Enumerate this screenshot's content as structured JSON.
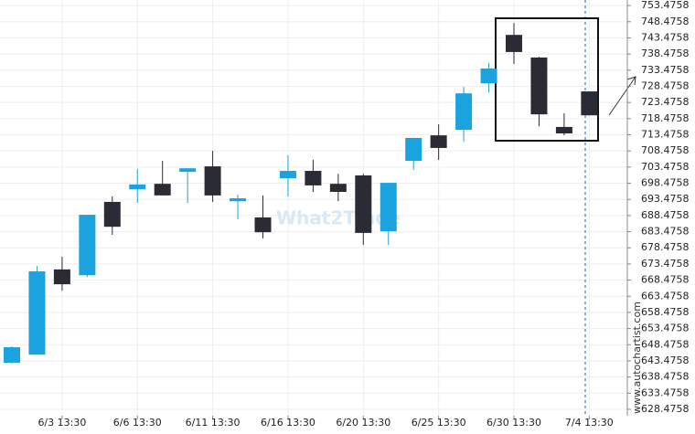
{
  "chart_data": {
    "type": "candlestick",
    "watermark": "What2Trade",
    "source": "www.autochartist.com",
    "categories": [
      null,
      null,
      "6/3 13:30",
      null,
      null,
      "6/6 13:30",
      null,
      null,
      "6/11 13:30",
      null,
      null,
      "6/16 13:30",
      null,
      null,
      "6/20 13:30",
      null,
      null,
      "6/25 13:30",
      null,
      null,
      "6/30 13:30",
      null,
      null,
      "7/4 13:30"
    ],
    "open": [
      642.9,
      645.4,
      671.8,
      670.0,
      692.7,
      696.6,
      698.3,
      702.0,
      703.7,
      692.9,
      687.9,
      700.0,
      702.3,
      698.3,
      700.9,
      683.6,
      705.4,
      713.3,
      715.0,
      729.4,
      744.4,
      737.4,
      715.9,
      726.9
    ],
    "high": [
      648.0,
      672.9,
      675.7,
      688.7,
      694.4,
      702.9,
      705.4,
      703.1,
      708.5,
      694.9,
      694.7,
      707.1,
      705.7,
      701.4,
      701.4,
      698.6,
      712.5,
      716.7,
      728.3,
      735.7,
      748.1,
      737.6,
      720.1,
      726.9
    ],
    "low": [
      642.6,
      645.4,
      665.2,
      669.4,
      682.5,
      692.4,
      694.7,
      692.4,
      692.7,
      687.3,
      681.4,
      694.4,
      695.8,
      692.9,
      679.4,
      679.4,
      702.6,
      705.7,
      711.3,
      726.6,
      735.4,
      716.1,
      713.3,
      719.5
    ],
    "close": [
      647.7,
      671.2,
      667.2,
      688.7,
      685.0,
      698.1,
      694.7,
      703.1,
      694.7,
      693.8,
      683.3,
      702.3,
      697.8,
      695.8,
      683.1,
      698.6,
      712.5,
      709.4,
      726.3,
      734.0,
      739.1,
      719.8,
      713.9,
      719.5
    ],
    "up_color": "#1ba3e0",
    "down_color": "#2b2b36",
    "ylim": [
      626.5,
      755.2
    ],
    "yticks": [
      628.4758,
      633.4758,
      638.4758,
      643.4758,
      648.4758,
      653.4758,
      658.4758,
      663.4758,
      668.4758,
      673.4758,
      678.4758,
      683.4758,
      688.4758,
      693.4758,
      698.4758,
      703.4758,
      708.4758,
      713.4758,
      718.4758,
      723.4758,
      728.4758,
      733.4758,
      738.4758,
      743.4758,
      748.4758,
      753.4758
    ],
    "grid": true
  }
}
